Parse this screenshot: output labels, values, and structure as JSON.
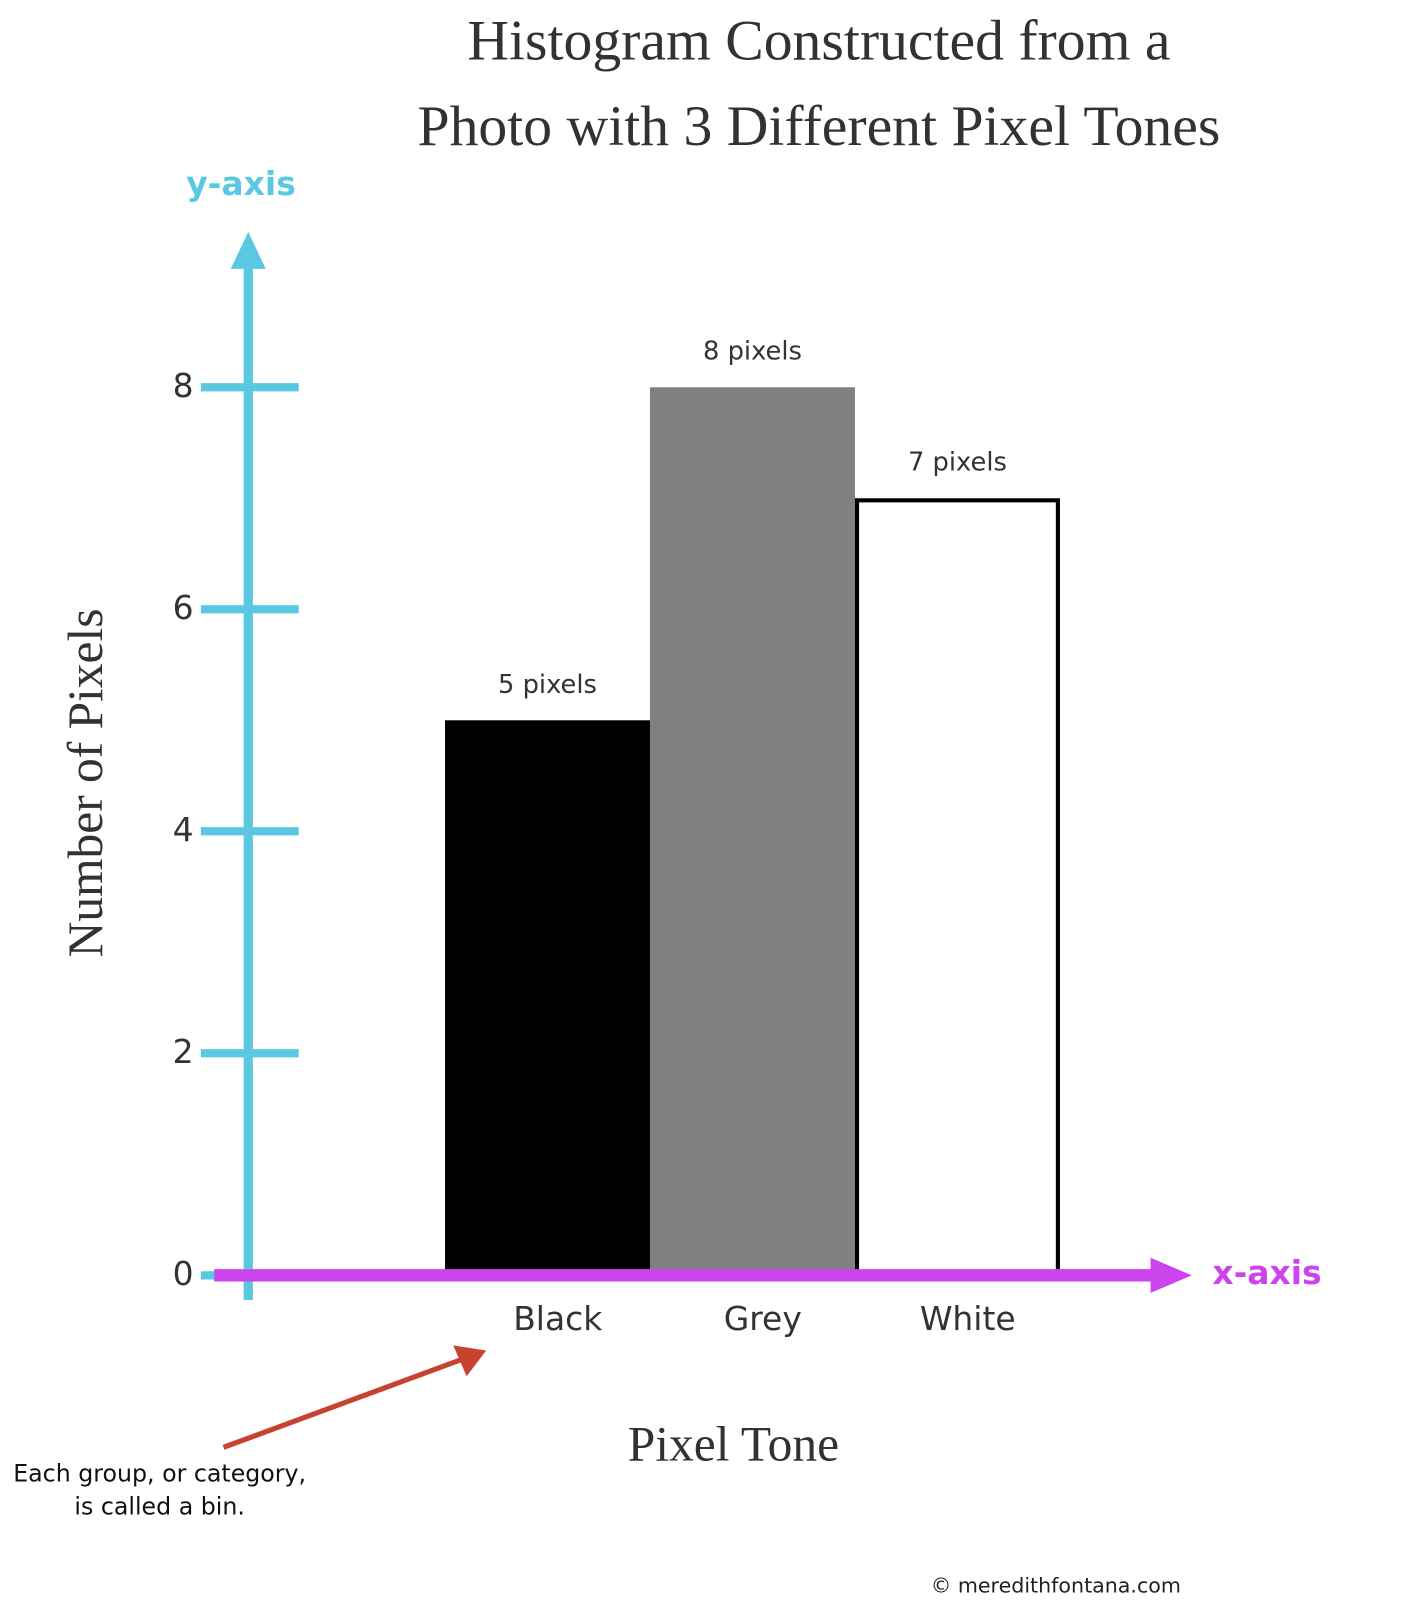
{
  "chart_data": {
    "type": "bar",
    "title": [
      "Histogram Constructed from a",
      "Photo with 3 Different Pixel Tones"
    ],
    "y_label": "Number of Pixels",
    "x_label": "Pixel Tone",
    "y_axis_tag": "y-axis",
    "x_axis_tag": "x-axis",
    "annotation": [
      "Each group, or category,",
      "is called a bin."
    ],
    "credit": "© meredithfontana.com",
    "categories": [
      "Black",
      "Grey",
      "White"
    ],
    "values": [
      5,
      8,
      7
    ],
    "value_labels": [
      "5 pixels",
      "8 pixels",
      "7 pixels"
    ],
    "colors": [
      "#000000",
      "#808080",
      "#ffffff"
    ],
    "ylim": [
      0,
      9.4
    ],
    "yticks": [
      0,
      2,
      4,
      6,
      8
    ]
  }
}
